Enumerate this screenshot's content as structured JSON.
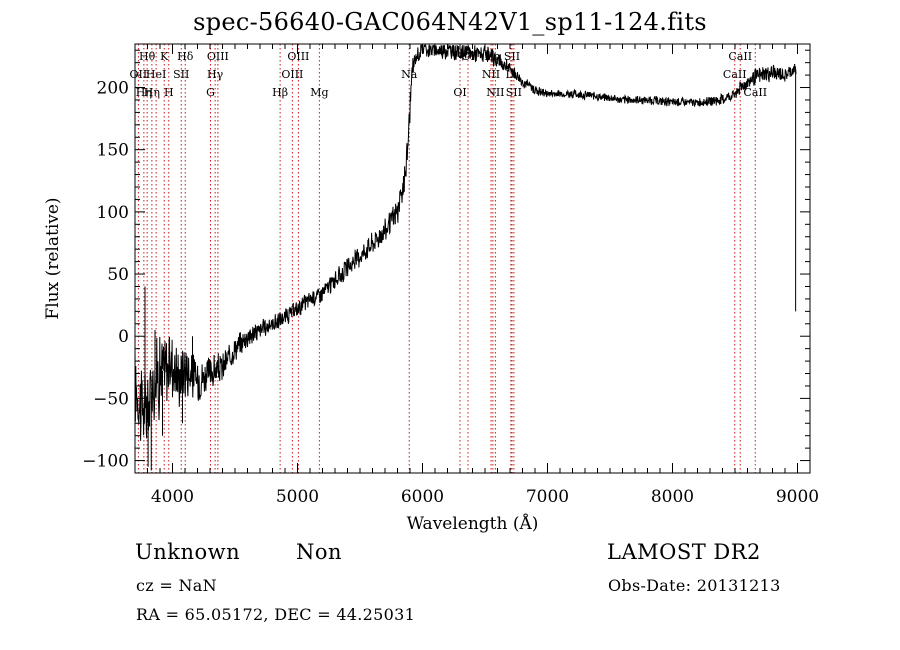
{
  "chart_data": {
    "type": "line",
    "title": "spec-56640-GAC064N42V1_sp11-124.fits",
    "xlabel": "Wavelength (Å)",
    "ylabel": "Flux (relative)",
    "xlim": [
      3700,
      9100
    ],
    "ylim": [
      -110,
      235
    ],
    "xticks": [
      4000,
      5000,
      6000,
      7000,
      8000,
      9000
    ],
    "yticks": [
      -100,
      -50,
      0,
      50,
      100,
      150,
      200
    ],
    "xtick_labels": [
      "4000",
      "5000",
      "6000",
      "7000",
      "8000",
      "9000"
    ],
    "ytick_labels": [
      "−100",
      "−50",
      "0",
      "50",
      "100",
      "150",
      "200"
    ],
    "series": [
      {
        "x": [
          3700,
          3750,
          3800,
          3850,
          3900,
          3950,
          4000,
          4050,
          4100,
          4200,
          4300,
          4400,
          4500,
          4600,
          4700,
          4800,
          4900,
          5000,
          5100,
          5200,
          5300,
          5400,
          5500,
          5600,
          5700,
          5800,
          5850,
          5880,
          5900,
          5920,
          5950,
          6000,
          6100,
          6200,
          6300,
          6400,
          6500,
          6600,
          6700,
          6800,
          6900,
          7000,
          7200,
          7400,
          7600,
          7800,
          8000,
          8200,
          8400,
          8500,
          8600,
          8700,
          8800,
          8900,
          8950,
          8990
        ],
        "y": [
          -40,
          -55,
          -60,
          -35,
          -30,
          -25,
          -20,
          -35,
          -25,
          -35,
          -30,
          -25,
          -10,
          0,
          5,
          10,
          15,
          22,
          30,
          35,
          45,
          55,
          65,
          75,
          85,
          100,
          120,
          150,
          185,
          215,
          225,
          232,
          230,
          230,
          228,
          228,
          226,
          222,
          215,
          205,
          198,
          195,
          195,
          193,
          190,
          190,
          188,
          188,
          190,
          195,
          205,
          210,
          212,
          210,
          213,
          215
        ],
        "noise": [
          30,
          30,
          30,
          30,
          30,
          25,
          25,
          20,
          20,
          15,
          12,
          10,
          8,
          8,
          7,
          6,
          6,
          6,
          6,
          6,
          6,
          7,
          7,
          8,
          8,
          10,
          10,
          10,
          10,
          8,
          6,
          6,
          6,
          6,
          6,
          6,
          6,
          6,
          5,
          4,
          4,
          3,
          3,
          3,
          3,
          3,
          3,
          3,
          4,
          4,
          5,
          6,
          6,
          5,
          5,
          5
        ]
      }
    ],
    "lines": [
      {
        "wl": 3727,
        "labels": [
          {
            "text": "OII",
            "row": 1
          }
        ]
      },
      {
        "wl": 3771,
        "labels": [
          {
            "text": "Hη",
            "row": 2
          }
        ]
      },
      {
        "wl": 3797,
        "labels": [
          {
            "text": "Hθ",
            "row": 0
          }
        ]
      },
      {
        "wl": 3835,
        "labels": [
          {
            "text": "Hη",
            "row": 2
          }
        ]
      },
      {
        "wl": 3869,
        "labels": [
          {
            "text": "HeI",
            "row": 1
          }
        ]
      },
      {
        "wl": 3934,
        "labels": [
          {
            "text": "K",
            "row": 0
          }
        ]
      },
      {
        "wl": 3970,
        "labels": [
          {
            "text": "H",
            "row": 2
          }
        ]
      },
      {
        "wl": 4070,
        "labels": [
          {
            "text": "SII",
            "row": 1
          }
        ]
      },
      {
        "wl": 4102,
        "labels": [
          {
            "text": "Hδ",
            "row": 0
          }
        ]
      },
      {
        "wl": 4304,
        "labels": [
          {
            "text": "G",
            "row": 2
          }
        ]
      },
      {
        "wl": 4341,
        "labels": [
          {
            "text": "Hγ",
            "row": 1
          }
        ]
      },
      {
        "wl": 4363,
        "labels": [
          {
            "text": "OIII",
            "row": 0
          }
        ]
      },
      {
        "wl": 4861,
        "labels": [
          {
            "text": "Hβ",
            "row": 2
          }
        ]
      },
      {
        "wl": 4959,
        "labels": [
          {
            "text": "OIII",
            "row": 1
          }
        ]
      },
      {
        "wl": 5007,
        "labels": [
          {
            "text": "OIII",
            "row": 0
          }
        ]
      },
      {
        "wl": 5175,
        "labels": [
          {
            "text": "Mg",
            "row": 2
          }
        ]
      },
      {
        "wl": 5894,
        "labels": [
          {
            "text": "Na",
            "row": 1
          }
        ]
      },
      {
        "wl": 6300,
        "labels": [
          {
            "text": "OI",
            "row": 2
          }
        ]
      },
      {
        "wl": 6364,
        "labels": [
          {
            "text": "OI",
            "row": 0
          }
        ]
      },
      {
        "wl": 6548,
        "labels": [
          {
            "text": "NII",
            "row": 1
          }
        ]
      },
      {
        "wl": 6563,
        "labels": [
          {
            "text": "Hα",
            "row": 0
          }
        ]
      },
      {
        "wl": 6583,
        "labels": [
          {
            "text": "NII",
            "row": 2
          }
        ]
      },
      {
        "wl": 6707,
        "labels": [
          {
            "text": "Li",
            "row": 1
          }
        ]
      },
      {
        "wl": 6716,
        "labels": [
          {
            "text": "SII",
            "row": 0
          }
        ]
      },
      {
        "wl": 6731,
        "labels": [
          {
            "text": "SII",
            "row": 2
          }
        ]
      },
      {
        "wl": 8498,
        "labels": [
          {
            "text": "CaII",
            "row": 1
          }
        ]
      },
      {
        "wl": 8542,
        "labels": [
          {
            "text": "CaII",
            "row": 0
          }
        ]
      },
      {
        "wl": 8662,
        "labels": [
          {
            "text": "CaII",
            "row": 2
          }
        ]
      }
    ]
  },
  "footer": {
    "class_label": "Unknown",
    "subclass_label": "Non",
    "redshift": "cz = NaN",
    "coords": "RA =  65.05172, DEC =  44.25031",
    "survey": "LAMOST DR2",
    "obs_date": "Obs-Date: 20131213"
  }
}
